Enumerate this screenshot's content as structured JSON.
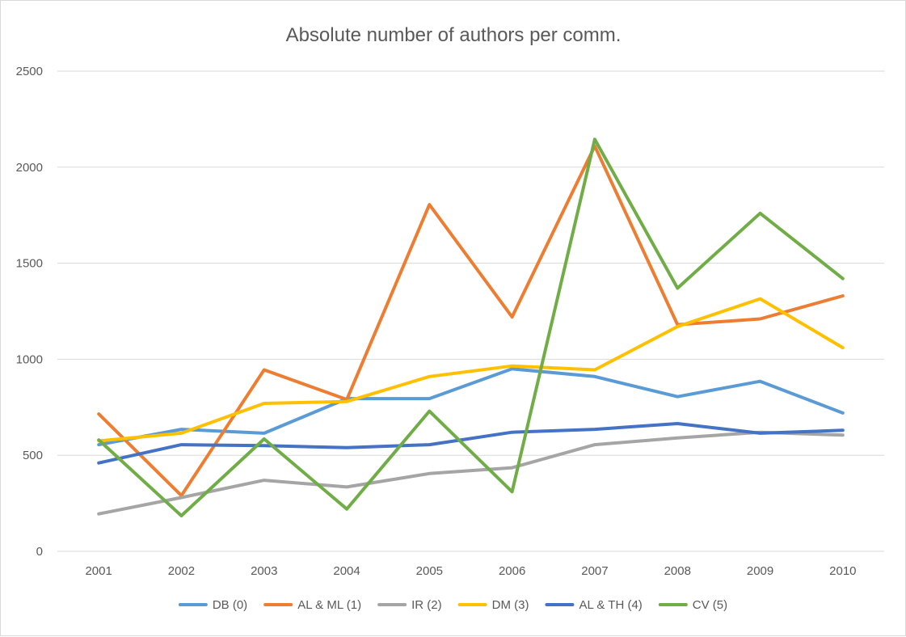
{
  "chart_data": {
    "type": "line",
    "title": "Absolute number of authors per comm.",
    "xlabel": "",
    "ylabel": "",
    "categories": [
      "2001",
      "2002",
      "2003",
      "2004",
      "2005",
      "2006",
      "2007",
      "2008",
      "2009",
      "2010"
    ],
    "ylim": [
      0,
      2500
    ],
    "yticks": [
      0,
      500,
      1000,
      1500,
      2000,
      2500
    ],
    "grid": "horizontal",
    "legend_position": "bottom",
    "series": [
      {
        "name": "DB (0)",
        "color": "#5b9bd5",
        "values": [
          555,
          635,
          615,
          795,
          795,
          950,
          910,
          805,
          885,
          720
        ]
      },
      {
        "name": "AL & ML (1)",
        "color": "#ed7d31",
        "values": [
          715,
          290,
          945,
          790,
          1805,
          1220,
          2110,
          1180,
          1210,
          1330
        ]
      },
      {
        "name": "IR (2)",
        "color": "#a5a5a5",
        "values": [
          195,
          280,
          370,
          335,
          405,
          435,
          555,
          590,
          620,
          605
        ]
      },
      {
        "name": "DM (3)",
        "color": "#ffc000",
        "values": [
          575,
          615,
          770,
          780,
          910,
          965,
          945,
          1170,
          1315,
          1060
        ]
      },
      {
        "name": "AL & TH (4)",
        "color": "#4472c4",
        "values": [
          460,
          555,
          550,
          540,
          555,
          620,
          635,
          665,
          615,
          630
        ]
      },
      {
        "name": "CV (5)",
        "color": "#70ad47",
        "values": [
          580,
          185,
          585,
          220,
          730,
          310,
          2145,
          1370,
          1760,
          1420
        ]
      }
    ]
  }
}
